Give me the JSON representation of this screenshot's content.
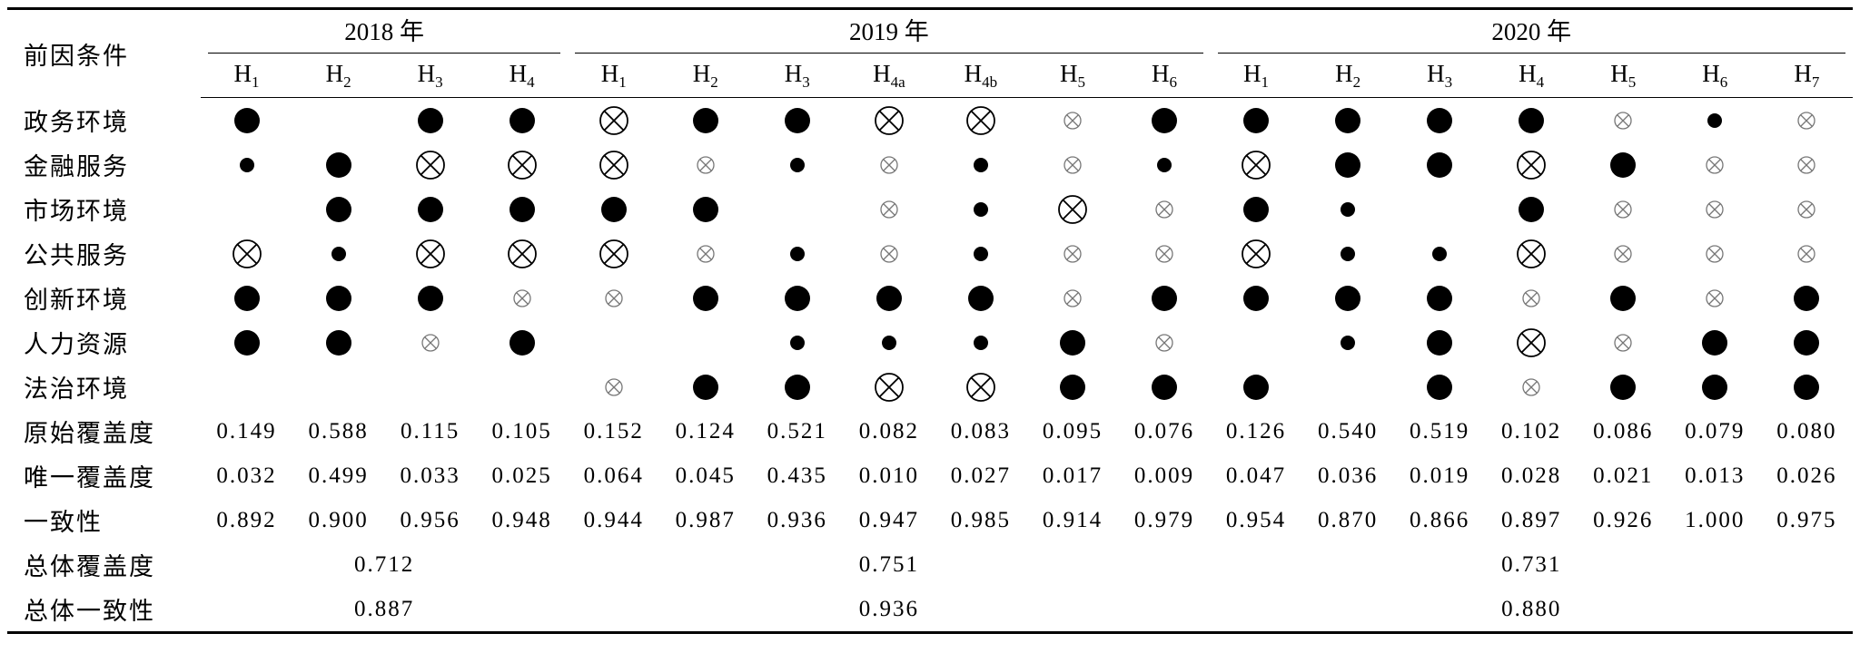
{
  "header": {
    "label": "前因条件",
    "years": [
      {
        "label": "2018 年",
        "columns": [
          {
            "main": "H",
            "sub": "1"
          },
          {
            "main": "H",
            "sub": "2"
          },
          {
            "main": "H",
            "sub": "3"
          },
          {
            "main": "H",
            "sub": "4"
          }
        ]
      },
      {
        "label": "2019 年",
        "columns": [
          {
            "main": "H",
            "sub": "1"
          },
          {
            "main": "H",
            "sub": "2"
          },
          {
            "main": "H",
            "sub": "3"
          },
          {
            "main": "H",
            "sub": "4a"
          },
          {
            "main": "H",
            "sub": "4b"
          },
          {
            "main": "H",
            "sub": "5"
          },
          {
            "main": "H",
            "sub": "6"
          }
        ]
      },
      {
        "label": "2020 年",
        "columns": [
          {
            "main": "H",
            "sub": "1"
          },
          {
            "main": "H",
            "sub": "2"
          },
          {
            "main": "H",
            "sub": "3"
          },
          {
            "main": "H",
            "sub": "4"
          },
          {
            "main": "H",
            "sub": "5"
          },
          {
            "main": "H",
            "sub": "6"
          },
          {
            "main": "H",
            "sub": "7"
          }
        ]
      }
    ]
  },
  "rows": [
    {
      "label": "政务环境",
      "cells": [
        "core",
        null,
        "core",
        "core",
        "core-absent",
        "core",
        "core",
        "core-absent",
        "core-absent",
        "peripheral-absent",
        "core",
        "core",
        "core",
        "core",
        "core",
        "peripheral-absent",
        "peripheral",
        "peripheral-absent"
      ]
    },
    {
      "label": "金融服务",
      "cells": [
        "peripheral",
        "core",
        "core-absent",
        "core-absent",
        "core-absent",
        "peripheral-absent",
        "peripheral",
        "peripheral-absent",
        "peripheral",
        "peripheral-absent",
        "peripheral",
        "core-absent",
        "core",
        "core",
        "core-absent",
        "core",
        "peripheral-absent",
        "peripheral-absent"
      ]
    },
    {
      "label": "市场环境",
      "cells": [
        null,
        "core",
        "core",
        "core",
        "core",
        "core",
        null,
        "peripheral-absent",
        "peripheral",
        "core-absent",
        "peripheral-absent",
        "core",
        "peripheral",
        null,
        "core",
        "peripheral-absent",
        "peripheral-absent",
        "peripheral-absent"
      ]
    },
    {
      "label": "公共服务",
      "cells": [
        "core-absent",
        "peripheral",
        "core-absent",
        "core-absent",
        "core-absent",
        "peripheral-absent",
        "peripheral",
        "peripheral-absent",
        "peripheral",
        "peripheral-absent",
        "peripheral-absent",
        "core-absent",
        "peripheral",
        "peripheral",
        "core-absent",
        "peripheral-absent",
        "peripheral-absent",
        "peripheral-absent"
      ]
    },
    {
      "label": "创新环境",
      "cells": [
        "core",
        "core",
        "core",
        "peripheral-absent",
        "peripheral-absent",
        "core",
        "core",
        "core",
        "core",
        "peripheral-absent",
        "core",
        "core",
        "core",
        "core",
        "peripheral-absent",
        "core",
        "peripheral-absent",
        "core"
      ]
    },
    {
      "label": "人力资源",
      "cells": [
        "core",
        "core",
        "peripheral-absent",
        "core",
        null,
        null,
        "peripheral",
        "peripheral",
        "peripheral",
        "core",
        "peripheral-absent",
        null,
        "peripheral",
        "core",
        "core-absent",
        "peripheral-absent",
        "core",
        "core"
      ]
    },
    {
      "label": "法治环境",
      "cells": [
        null,
        null,
        null,
        null,
        "peripheral-absent",
        "core",
        "core",
        "core-absent",
        "core-absent",
        "core",
        "core",
        "core",
        null,
        "core",
        "peripheral-absent",
        "core",
        "core",
        "core"
      ]
    }
  ],
  "metrics": [
    {
      "label": "原始覆盖度",
      "values": [
        "0.149",
        "0.588",
        "0.115",
        "0.105",
        "0.152",
        "0.124",
        "0.521",
        "0.082",
        "0.083",
        "0.095",
        "0.076",
        "0.126",
        "0.540",
        "0.519",
        "0.102",
        "0.086",
        "0.079",
        "0.080"
      ]
    },
    {
      "label": "唯一覆盖度",
      "values": [
        "0.032",
        "0.499",
        "0.033",
        "0.025",
        "0.064",
        "0.045",
        "0.435",
        "0.010",
        "0.027",
        "0.017",
        "0.009",
        "0.047",
        "0.036",
        "0.019",
        "0.028",
        "0.021",
        "0.013",
        "0.026"
      ]
    },
    {
      "label": "一致性",
      "values": [
        "0.892",
        "0.900",
        "0.956",
        "0.948",
        "0.944",
        "0.987",
        "0.936",
        "0.947",
        "0.985",
        "0.914",
        "0.979",
        "0.954",
        "0.870",
        "0.866",
        "0.897",
        "0.926",
        "1.000",
        "0.975"
      ]
    }
  ],
  "summary": [
    {
      "label": "总体覆盖度",
      "values": [
        "0.712",
        "0.751",
        "0.731"
      ]
    },
    {
      "label": "总体一致性",
      "values": [
        "0.887",
        "0.936",
        "0.880"
      ]
    }
  ]
}
